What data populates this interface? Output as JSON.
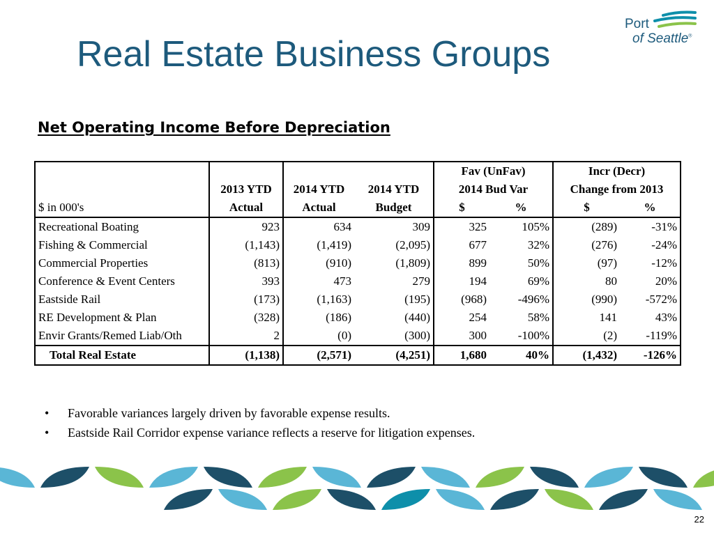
{
  "title": "Real Estate Business Groups",
  "logo": {
    "line1": "Port",
    "line2": "of Seattle",
    "mark": "®"
  },
  "section_title": "Net Operating Income Before Depreciation",
  "table": {
    "group_headers": {
      "variance": "Fav (UnFav)",
      "change": "Incr (Decr)"
    },
    "sub_headers": {
      "ytd2013": "2013 YTD",
      "ytd2014": "2014 YTD",
      "budget2014": "2014 YTD",
      "budvar": "2014 Bud Var",
      "chg": "Change from 2013"
    },
    "col_headers": {
      "label": "$ in 000's",
      "actual2013": "Actual",
      "actual2014": "Actual",
      "budget": "Budget",
      "var_dollar": "$",
      "var_pct": "%",
      "chg_dollar": "$",
      "chg_pct": "%"
    },
    "rows": [
      {
        "name": "Recreational Boating",
        "a2013": "923",
        "a2014": "634",
        "bud": "309",
        "vd": "325",
        "vp": "105%",
        "cd": "(289)",
        "cp": "-31%"
      },
      {
        "name": "Fishing & Commercial",
        "a2013": "(1,143)",
        "a2014": "(1,419)",
        "bud": "(2,095)",
        "vd": "677",
        "vp": "32%",
        "cd": "(276)",
        "cp": "-24%"
      },
      {
        "name": "Commercial Properties",
        "a2013": "(813)",
        "a2014": "(910)",
        "bud": "(1,809)",
        "vd": "899",
        "vp": "50%",
        "cd": "(97)",
        "cp": "-12%"
      },
      {
        "name": "Conference & Event Centers",
        "a2013": "393",
        "a2014": "473",
        "bud": "279",
        "vd": "194",
        "vp": "69%",
        "cd": "80",
        "cp": "20%"
      },
      {
        "name": "Eastside Rail",
        "a2013": "(173)",
        "a2014": "(1,163)",
        "bud": "(195)",
        "vd": "(968)",
        "vp": "-496%",
        "cd": "(990)",
        "cp": "-572%"
      },
      {
        "name": "RE Development & Plan",
        "a2013": "(328)",
        "a2014": "(186)",
        "bud": "(440)",
        "vd": "254",
        "vp": "58%",
        "cd": "141",
        "cp": "43%"
      },
      {
        "name": "Envir Grants/Remed Liab/Oth",
        "a2013": "2",
        "a2014": "(0)",
        "bud": "(300)",
        "vd": "300",
        "vp": "-100%",
        "cd": "(2)",
        "cp": "-119%"
      }
    ],
    "total": {
      "name": "Total Real Estate",
      "a2013": "(1,138)",
      "a2014": "(2,571)",
      "bud": "(4,251)",
      "vd": "1,680",
      "vp": "40%",
      "cd": "(1,432)",
      "cp": "-126%"
    }
  },
  "bullets": [
    "Favorable variances largely driven by favorable expense results.",
    "Eastside Rail Corridor expense variance reflects a reserve for litigation expenses."
  ],
  "bullet_glyph": "•",
  "page_number": "22",
  "colors": {
    "title": "#1d5a7c",
    "navy": "#1d4f68",
    "teal": "#0e8faa",
    "light_blue": "#5ab6d6",
    "green": "#8bc34a"
  }
}
